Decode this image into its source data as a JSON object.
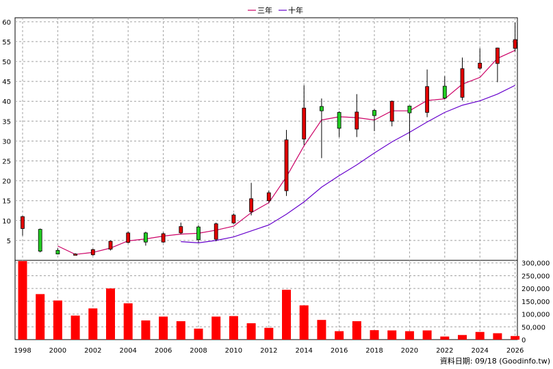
{
  "legend": {
    "ma3_label": "三年",
    "ma10_label": "十年"
  },
  "footer": {
    "label": "資料日期: 09/18  (Goodinfo.tw)"
  },
  "colors": {
    "up": "#e00000",
    "down": "#22cc22",
    "ma3": "#cc0066",
    "ma10": "#6600cc",
    "volume": "#ff0000",
    "grid": "#a0a0a0"
  },
  "chart_data": {
    "type": "candlestick_with_volume",
    "grid": true,
    "legend_position": "top-center",
    "x_tick_labels": [
      "1998",
      "2000",
      "2002",
      "2004",
      "2006",
      "2008",
      "2010",
      "2012",
      "2014",
      "2016",
      "2018",
      "2020",
      "2022",
      "2024",
      "2026"
    ],
    "price_axis": {
      "range": [
        0,
        61
      ],
      "ticks": [
        5,
        10,
        15,
        20,
        25,
        30,
        35,
        40,
        45,
        50,
        55,
        60
      ]
    },
    "volume_axis": {
      "range": [
        0,
        310000
      ],
      "ticks": [
        "0",
        "50,000",
        "100,000",
        "150,000",
        "200,000",
        "250,000",
        "300,000"
      ],
      "tick_values": [
        0,
        50000,
        100000,
        150000,
        200000,
        250000,
        300000
      ]
    },
    "candles": [
      {
        "year": 1998,
        "open": 8.0,
        "high": 11.2,
        "low": 6.2,
        "close": 11.0
      },
      {
        "year": 1999,
        "open": 7.8,
        "high": 8.0,
        "low": 2.0,
        "close": 2.3
      },
      {
        "year": 2000,
        "open": 2.5,
        "high": 3.0,
        "low": 1.5,
        "close": 1.6
      },
      {
        "year": 2001,
        "open": 1.5,
        "high": 1.8,
        "low": 1.2,
        "close": 1.6
      },
      {
        "year": 2002,
        "open": 1.4,
        "high": 2.9,
        "low": 1.2,
        "close": 2.7
      },
      {
        "year": 2003,
        "open": 2.8,
        "high": 5.0,
        "low": 2.5,
        "close": 4.8
      },
      {
        "year": 2004,
        "open": 4.5,
        "high": 7.2,
        "low": 4.3,
        "close": 6.9
      },
      {
        "year": 2005,
        "open": 6.9,
        "high": 7.2,
        "low": 3.7,
        "close": 4.6
      },
      {
        "year": 2006,
        "open": 4.6,
        "high": 7.0,
        "low": 4.4,
        "close": 6.7
      },
      {
        "year": 2007,
        "open": 6.9,
        "high": 9.5,
        "low": 6.6,
        "close": 8.5
      },
      {
        "year": 2008,
        "open": 8.4,
        "high": 8.8,
        "low": 4.5,
        "close": 5.2
      },
      {
        "year": 2009,
        "open": 5.3,
        "high": 9.5,
        "low": 4.8,
        "close": 9.2
      },
      {
        "year": 2010,
        "open": 9.4,
        "high": 11.8,
        "low": 9.2,
        "close": 11.4
      },
      {
        "year": 2011,
        "open": 12.2,
        "high": 19.5,
        "low": 11.3,
        "close": 15.5
      },
      {
        "year": 2012,
        "open": 15.0,
        "high": 17.5,
        "low": 14.5,
        "close": 17.0
      },
      {
        "year": 2013,
        "open": 17.5,
        "high": 32.8,
        "low": 16.2,
        "close": 30.3
      },
      {
        "year": 2014,
        "open": 30.5,
        "high": 44.0,
        "low": 29.0,
        "close": 38.3
      },
      {
        "year": 2015,
        "open": 38.7,
        "high": 40.7,
        "low": 25.7,
        "close": 37.6
      },
      {
        "year": 2016,
        "open": 37.2,
        "high": 37.5,
        "low": 31.0,
        "close": 33.2
      },
      {
        "year": 2017,
        "open": 33.0,
        "high": 41.8,
        "low": 31.0,
        "close": 37.3
      },
      {
        "year": 2018,
        "open": 37.7,
        "high": 38.0,
        "low": 32.5,
        "close": 36.4
      },
      {
        "year": 2019,
        "open": 35.0,
        "high": 40.2,
        "low": 33.7,
        "close": 40.0
      },
      {
        "year": 2020,
        "open": 38.8,
        "high": 38.9,
        "low": 30.0,
        "close": 37.1
      },
      {
        "year": 2021,
        "open": 37.2,
        "high": 48.0,
        "low": 36.0,
        "close": 43.7
      },
      {
        "year": 2022,
        "open": 43.8,
        "high": 46.3,
        "low": 40.5,
        "close": 40.8
      },
      {
        "year": 2023,
        "open": 41.0,
        "high": 51.0,
        "low": 40.2,
        "close": 48.2
      },
      {
        "year": 2024,
        "open": 48.3,
        "high": 53.3,
        "low": 47.9,
        "close": 49.6
      },
      {
        "year": 2025,
        "open": 49.5,
        "high": 53.5,
        "low": 44.8,
        "close": 53.4
      },
      {
        "year": 2026,
        "open": 53.3,
        "high": 59.8,
        "low": 52.5,
        "close": 55.5
      }
    ],
    "ma3": [
      {
        "year": 2000,
        "value": 3.6
      },
      {
        "year": 2001,
        "value": 1.5
      },
      {
        "year": 2002,
        "value": 2.0
      },
      {
        "year": 2003,
        "value": 3.1
      },
      {
        "year": 2004,
        "value": 4.9
      },
      {
        "year": 2005,
        "value": 5.4
      },
      {
        "year": 2006,
        "value": 6.1
      },
      {
        "year": 2007,
        "value": 6.6
      },
      {
        "year": 2008,
        "value": 6.8
      },
      {
        "year": 2009,
        "value": 7.6
      },
      {
        "year": 2010,
        "value": 8.6
      },
      {
        "year": 2011,
        "value": 12.0
      },
      {
        "year": 2012,
        "value": 14.5
      },
      {
        "year": 2013,
        "value": 21.0
      },
      {
        "year": 2014,
        "value": 28.8
      },
      {
        "year": 2015,
        "value": 35.3
      },
      {
        "year": 2016,
        "value": 36.1
      },
      {
        "year": 2017,
        "value": 35.9
      },
      {
        "year": 2018,
        "value": 35.3
      },
      {
        "year": 2019,
        "value": 37.6
      },
      {
        "year": 2020,
        "value": 37.6
      },
      {
        "year": 2021,
        "value": 40.2
      },
      {
        "year": 2022,
        "value": 40.6
      },
      {
        "year": 2023,
        "value": 44.3
      },
      {
        "year": 2024,
        "value": 46.0
      },
      {
        "year": 2025,
        "value": 50.8
      },
      {
        "year": 2026,
        "value": 52.8
      }
    ],
    "ma10": [
      {
        "year": 2007,
        "value": 4.7
      },
      {
        "year": 2008,
        "value": 4.4
      },
      {
        "year": 2009,
        "value": 5.0
      },
      {
        "year": 2010,
        "value": 5.9
      },
      {
        "year": 2011,
        "value": 7.4
      },
      {
        "year": 2012,
        "value": 8.9
      },
      {
        "year": 2013,
        "value": 11.6
      },
      {
        "year": 2014,
        "value": 14.7
      },
      {
        "year": 2015,
        "value": 18.4
      },
      {
        "year": 2016,
        "value": 21.3
      },
      {
        "year": 2017,
        "value": 24.0
      },
      {
        "year": 2018,
        "value": 27.0
      },
      {
        "year": 2019,
        "value": 29.8
      },
      {
        "year": 2020,
        "value": 32.2
      },
      {
        "year": 2021,
        "value": 34.8
      },
      {
        "year": 2022,
        "value": 37.2
      },
      {
        "year": 2023,
        "value": 39.0
      },
      {
        "year": 2024,
        "value": 40.1
      },
      {
        "year": 2025,
        "value": 41.8
      },
      {
        "year": 2026,
        "value": 44.0
      }
    ],
    "volume": [
      {
        "year": 1998,
        "value": 307000
      },
      {
        "year": 1999,
        "value": 178000
      },
      {
        "year": 2000,
        "value": 153000
      },
      {
        "year": 2001,
        "value": 94000
      },
      {
        "year": 2002,
        "value": 122000
      },
      {
        "year": 2003,
        "value": 200000
      },
      {
        "year": 2004,
        "value": 142000
      },
      {
        "year": 2005,
        "value": 75000
      },
      {
        "year": 2006,
        "value": 90000
      },
      {
        "year": 2007,
        "value": 72000
      },
      {
        "year": 2008,
        "value": 43000
      },
      {
        "year": 2009,
        "value": 90000
      },
      {
        "year": 2010,
        "value": 92000
      },
      {
        "year": 2011,
        "value": 64000
      },
      {
        "year": 2012,
        "value": 46000
      },
      {
        "year": 2013,
        "value": 195000
      },
      {
        "year": 2014,
        "value": 134000
      },
      {
        "year": 2015,
        "value": 77000
      },
      {
        "year": 2016,
        "value": 33000
      },
      {
        "year": 2017,
        "value": 72000
      },
      {
        "year": 2018,
        "value": 37000
      },
      {
        "year": 2019,
        "value": 36000
      },
      {
        "year": 2020,
        "value": 33000
      },
      {
        "year": 2021,
        "value": 36000
      },
      {
        "year": 2022,
        "value": 12000
      },
      {
        "year": 2023,
        "value": 18000
      },
      {
        "year": 2024,
        "value": 30000
      },
      {
        "year": 2025,
        "value": 25000
      },
      {
        "year": 2026,
        "value": 14000
      }
    ]
  }
}
